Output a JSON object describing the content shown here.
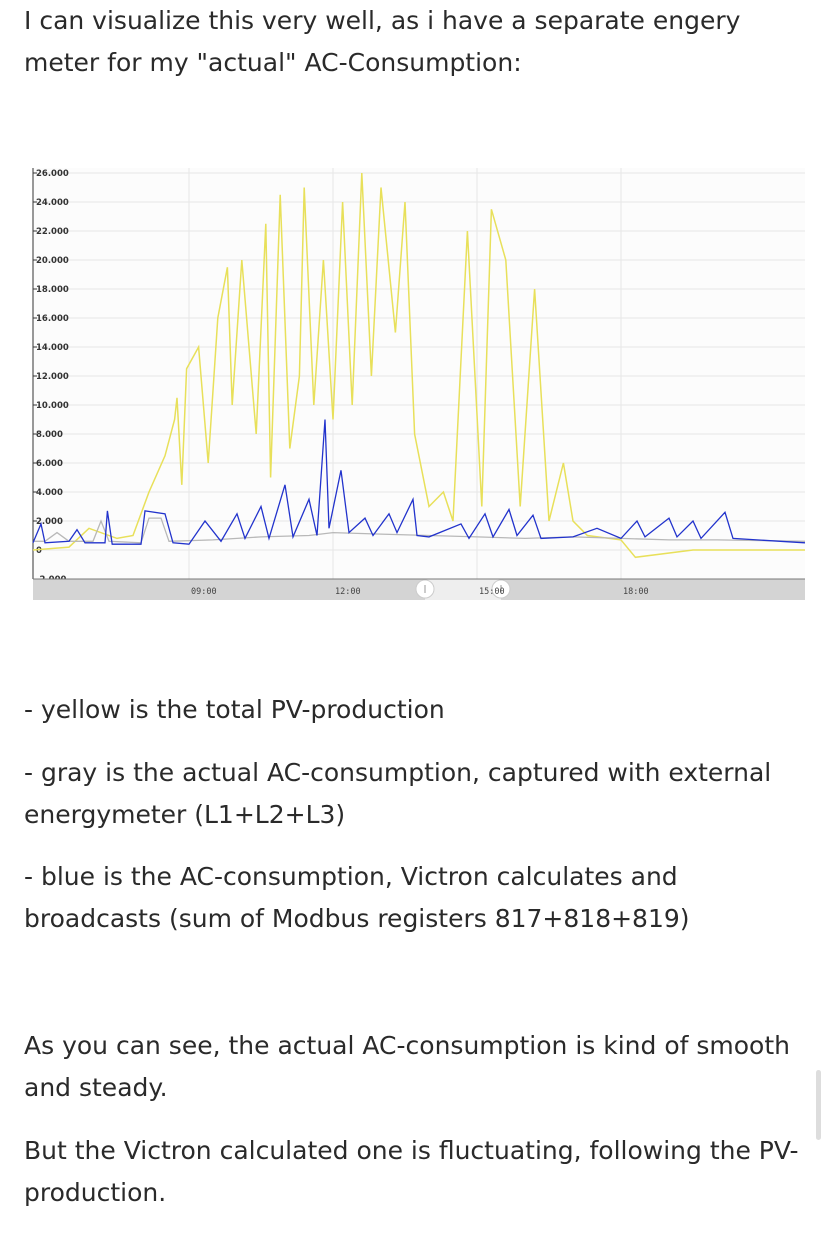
{
  "post": {
    "intro": "I can visualize this very well, as i have a separate engery meter for my \"actual\" AC-Consumption:",
    "legend_yellow": "- yellow is the total PV-production",
    "legend_gray": "- gray is the actual AC-consumption, captured with external energymeter (L1+L2+L3)",
    "legend_blue": "- blue is the AC-consumption, Victron calculates and broadcasts (sum of Modbus registers 817+818+819)",
    "para1": "As you can see, the actual AC-consumption is kind of smooth and steady.",
    "para2": "But the Victron calculated one is fluctuating, following the PV-production."
  },
  "chart_data": {
    "type": "line",
    "ylim": [
      -2000,
      26000
    ],
    "xlim": [
      "05:45",
      "21:50"
    ],
    "y_ticks": [
      "26.000",
      "24.000",
      "22.000",
      "20.000",
      "18.000",
      "16.000",
      "14.000",
      "12.000",
      "10.000",
      "8.000",
      "6.000",
      "4.000",
      "2.000",
      "0",
      "-2.000"
    ],
    "x_ticks": [
      "09:00",
      "12:00",
      "15:00",
      "18:00"
    ],
    "grid": true,
    "range_selector": [
      "13:55",
      "15:30"
    ],
    "colors": {
      "yellow": "#e8e05a",
      "gray": "#b8b8b8",
      "blue": "#2233cc"
    },
    "series": [
      {
        "color": "yellow",
        "points": [
          [
            "05:45",
            0
          ],
          [
            "06:30",
            200
          ],
          [
            "06:55",
            1500
          ],
          [
            "07:30",
            800
          ],
          [
            "07:50",
            1000
          ],
          [
            "08:10",
            4000
          ],
          [
            "08:30",
            6500
          ],
          [
            "08:42",
            9000
          ],
          [
            "08:45",
            10500
          ],
          [
            "08:51",
            4500
          ],
          [
            "08:57",
            12500
          ],
          [
            "09:12",
            14000
          ],
          [
            "09:24",
            6000
          ],
          [
            "09:36",
            16000
          ],
          [
            "09:48",
            19500
          ],
          [
            "09:54",
            10000
          ],
          [
            "10:06",
            20000
          ],
          [
            "10:24",
            8000
          ],
          [
            "10:36",
            22500
          ],
          [
            "10:42",
            5000
          ],
          [
            "10:54",
            24500
          ],
          [
            "11:06",
            7000
          ],
          [
            "11:18",
            12000
          ],
          [
            "11:24",
            25000
          ],
          [
            "11:36",
            10000
          ],
          [
            "11:48",
            20000
          ],
          [
            "12:00",
            9000
          ],
          [
            "12:12",
            24000
          ],
          [
            "12:24",
            10000
          ],
          [
            "12:36",
            26000
          ],
          [
            "12:48",
            12000
          ],
          [
            "13:00",
            25000
          ],
          [
            "13:18",
            15000
          ],
          [
            "13:30",
            24000
          ],
          [
            "13:42",
            8000
          ],
          [
            "14:00",
            3000
          ],
          [
            "14:18",
            4000
          ],
          [
            "14:30",
            2000
          ],
          [
            "14:48",
            22000
          ],
          [
            "15:06",
            3000
          ],
          [
            "15:18",
            23500
          ],
          [
            "15:36",
            20000
          ],
          [
            "15:54",
            3000
          ],
          [
            "16:12",
            18000
          ],
          [
            "16:30",
            2000
          ],
          [
            "16:48",
            6000
          ],
          [
            "17:00",
            2000
          ],
          [
            "17:18",
            1000
          ],
          [
            "18:00",
            700
          ],
          [
            "18:18",
            -500
          ],
          [
            "19:30",
            0
          ],
          [
            "21:50",
            0
          ]
        ]
      },
      {
        "color": "gray",
        "points": [
          [
            "05:45",
            600
          ],
          [
            "06:00",
            600
          ],
          [
            "06:15",
            1200
          ],
          [
            "06:30",
            600
          ],
          [
            "07:00",
            600
          ],
          [
            "07:10",
            2000
          ],
          [
            "07:20",
            600
          ],
          [
            "08:00",
            500
          ],
          [
            "08:10",
            2200
          ],
          [
            "08:25",
            2200
          ],
          [
            "08:35",
            600
          ],
          [
            "09:30",
            700
          ],
          [
            "10:30",
            900
          ],
          [
            "11:30",
            1000
          ],
          [
            "12:00",
            1200
          ],
          [
            "13:00",
            1100
          ],
          [
            "14:00",
            1000
          ],
          [
            "15:00",
            900
          ],
          [
            "16:00",
            800
          ],
          [
            "17:00",
            900
          ],
          [
            "18:00",
            800
          ],
          [
            "19:00",
            700
          ],
          [
            "20:00",
            700
          ],
          [
            "21:50",
            600
          ]
        ]
      },
      {
        "color": "blue",
        "points": [
          [
            "05:45",
            500
          ],
          [
            "05:55",
            1800
          ],
          [
            "06:00",
            500
          ],
          [
            "06:30",
            600
          ],
          [
            "06:40",
            1400
          ],
          [
            "06:50",
            500
          ],
          [
            "07:15",
            500
          ],
          [
            "07:18",
            2700
          ],
          [
            "07:24",
            400
          ],
          [
            "08:00",
            400
          ],
          [
            "08:05",
            2700
          ],
          [
            "08:30",
            2500
          ],
          [
            "08:40",
            500
          ],
          [
            "09:00",
            400
          ],
          [
            "09:20",
            2000
          ],
          [
            "09:40",
            600
          ],
          [
            "10:00",
            2500
          ],
          [
            "10:10",
            800
          ],
          [
            "10:30",
            3000
          ],
          [
            "10:40",
            800
          ],
          [
            "11:00",
            4500
          ],
          [
            "11:10",
            900
          ],
          [
            "11:30",
            3500
          ],
          [
            "11:40",
            1000
          ],
          [
            "11:50",
            9000
          ],
          [
            "11:55",
            1500
          ],
          [
            "12:10",
            5500
          ],
          [
            "12:20",
            1200
          ],
          [
            "12:40",
            2200
          ],
          [
            "12:50",
            1000
          ],
          [
            "13:10",
            2500
          ],
          [
            "13:20",
            1200
          ],
          [
            "13:40",
            3500
          ],
          [
            "13:45",
            1000
          ],
          [
            "14:00",
            900
          ],
          [
            "14:40",
            1800
          ],
          [
            "14:50",
            800
          ],
          [
            "15:10",
            2500
          ],
          [
            "15:20",
            900
          ],
          [
            "15:40",
            2800
          ],
          [
            "15:50",
            1000
          ],
          [
            "16:10",
            2400
          ],
          [
            "16:20",
            800
          ],
          [
            "17:00",
            900
          ],
          [
            "17:30",
            1500
          ],
          [
            "18:00",
            800
          ],
          [
            "18:20",
            2000
          ],
          [
            "18:30",
            900
          ],
          [
            "19:00",
            2200
          ],
          [
            "19:10",
            900
          ],
          [
            "19:30",
            2000
          ],
          [
            "19:40",
            800
          ],
          [
            "20:10",
            2600
          ],
          [
            "20:20",
            800
          ],
          [
            "21:50",
            500
          ]
        ]
      }
    ]
  }
}
